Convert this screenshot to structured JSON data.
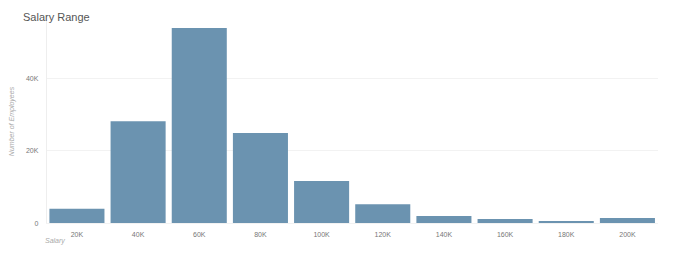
{
  "chart_data": {
    "type": "bar",
    "title": "Salary Range",
    "x_label": "Salary",
    "y_label": "Number of Employees",
    "categories": [
      "20K",
      "40K",
      "60K",
      "80K",
      "100K",
      "120K",
      "140K",
      "160K",
      "180K",
      "200K"
    ],
    "values": [
      3900,
      28100,
      53800,
      24800,
      11600,
      5200,
      1900,
      1100,
      550,
      1400
    ],
    "color": "#6b93b0",
    "ylim": [
      0,
      56000
    ],
    "yticks": [
      0,
      {
        "value": 20000,
        "label": "20K"
      },
      {
        "value": 40000,
        "label": "40K"
      }
    ],
    "grid": true
  }
}
